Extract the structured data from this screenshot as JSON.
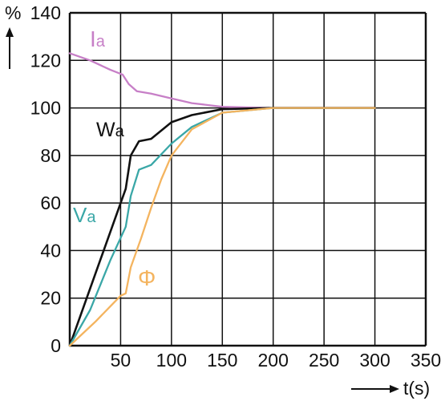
{
  "chart_data": {
    "type": "line",
    "ylabel": "%",
    "xlabel": "t(s)",
    "xlim": [
      0,
      350
    ],
    "ylim": [
      0,
      140
    ],
    "x_ticks": [
      "50",
      "100",
      "150",
      "200",
      "250",
      "300",
      "350"
    ],
    "y_ticks": [
      "0",
      "20",
      "40",
      "60",
      "80",
      "100",
      "120",
      "140"
    ],
    "grid": true,
    "series": [
      {
        "name": "Ia",
        "color": "#c77fc7",
        "points": [
          [
            0,
            123
          ],
          [
            20,
            120
          ],
          [
            40,
            116
          ],
          [
            52,
            114
          ],
          [
            58,
            110
          ],
          [
            66,
            107
          ],
          [
            80,
            106
          ],
          [
            100,
            104
          ],
          [
            120,
            102
          ],
          [
            150,
            100.5
          ],
          [
            200,
            100
          ],
          [
            250,
            100
          ],
          [
            300,
            100
          ]
        ]
      },
      {
        "name": "Wa",
        "color": "#111111",
        "points": [
          [
            0,
            0
          ],
          [
            25,
            30
          ],
          [
            45,
            54
          ],
          [
            55,
            66
          ],
          [
            60,
            80
          ],
          [
            68,
            86
          ],
          [
            80,
            87
          ],
          [
            100,
            94
          ],
          [
            120,
            97
          ],
          [
            150,
            99.5
          ],
          [
            200,
            100
          ],
          [
            250,
            100
          ],
          [
            300,
            100
          ]
        ]
      },
      {
        "name": "Va",
        "color": "#3aa7a7",
        "points": [
          [
            0,
            0
          ],
          [
            20,
            15
          ],
          [
            40,
            36
          ],
          [
            55,
            50
          ],
          [
            60,
            63
          ],
          [
            68,
            74
          ],
          [
            80,
            76
          ],
          [
            100,
            85
          ],
          [
            120,
            92
          ],
          [
            150,
            98
          ],
          [
            200,
            100
          ],
          [
            250,
            100
          ],
          [
            300,
            100
          ]
        ]
      },
      {
        "name": "Φ",
        "color": "#f4b45f",
        "points": [
          [
            0,
            0
          ],
          [
            25,
            10
          ],
          [
            50,
            21
          ],
          [
            55,
            22
          ],
          [
            60,
            33
          ],
          [
            70,
            45
          ],
          [
            80,
            58
          ],
          [
            90,
            70
          ],
          [
            100,
            80
          ],
          [
            120,
            91
          ],
          [
            150,
            98
          ],
          [
            200,
            100
          ],
          [
            250,
            100
          ],
          [
            300,
            100
          ]
        ]
      }
    ]
  },
  "labels": {
    "ia_main": "I",
    "ia_sub": "a",
    "wa_main": "W",
    "wa_sub": "a",
    "va_main": "V",
    "va_sub": "a",
    "phi": "Φ"
  },
  "colors": {
    "grid": "#111111",
    "ia": "#c77fc7",
    "wa": "#111111",
    "va": "#3aa7a7",
    "phi": "#f4b45f"
  }
}
